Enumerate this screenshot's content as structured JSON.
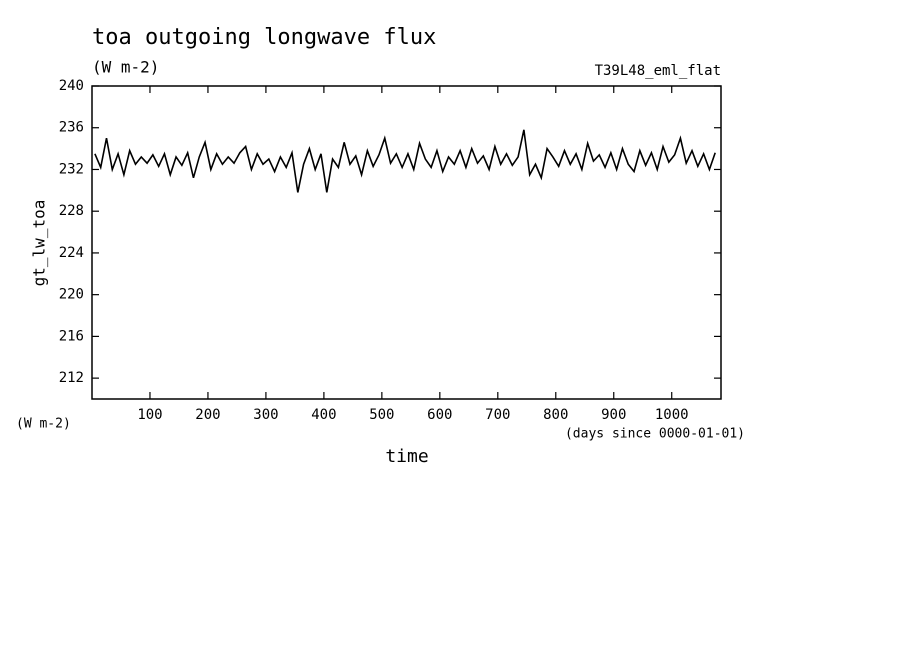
{
  "chart_data": {
    "type": "line",
    "title": "toa outgoing longwave flux",
    "subtitle": "(W m-2)",
    "annotation": "T39L48_eml_flat",
    "ylabel": "gt_lw_toa",
    "yunit": "(W m-2)",
    "xunit": "(days since 0000-01-01)",
    "xlabel": "time",
    "xlim": [
      0,
      1085
    ],
    "ylim": [
      210,
      240
    ],
    "xticks": [
      100,
      200,
      300,
      400,
      500,
      600,
      700,
      800,
      900,
      1000
    ],
    "yticks": [
      212,
      216,
      220,
      224,
      228,
      232,
      236,
      240
    ],
    "x": [
      5,
      15,
      25,
      35,
      45,
      55,
      65,
      75,
      85,
      95,
      105,
      115,
      125,
      135,
      145,
      155,
      165,
      175,
      185,
      195,
      205,
      215,
      225,
      235,
      245,
      255,
      265,
      275,
      285,
      295,
      305,
      315,
      325,
      335,
      345,
      355,
      365,
      375,
      385,
      395,
      405,
      415,
      425,
      435,
      445,
      455,
      465,
      475,
      485,
      495,
      505,
      515,
      525,
      535,
      545,
      555,
      565,
      575,
      585,
      595,
      605,
      615,
      625,
      635,
      645,
      655,
      665,
      675,
      685,
      695,
      705,
      715,
      725,
      735,
      745,
      755,
      765,
      775,
      785,
      795,
      805,
      815,
      825,
      835,
      845,
      855,
      865,
      875,
      885,
      895,
      905,
      915,
      925,
      935,
      945,
      955,
      965,
      975,
      985,
      995,
      1005,
      1015,
      1025,
      1035,
      1045,
      1055,
      1065,
      1075
    ],
    "series": [
      {
        "name": "gt_lw_toa",
        "color": "#000000",
        "values": [
          233.5,
          232.2,
          235,
          232,
          233.5,
          231.5,
          233.8,
          232.5,
          233.2,
          232.6,
          233.4,
          232.3,
          233.5,
          231.5,
          233.2,
          232.4,
          233.6,
          231.2,
          233.2,
          234.6,
          232,
          233.5,
          232.5,
          233.2,
          232.6,
          233.6,
          234.2,
          232,
          233.5,
          232.5,
          233,
          231.8,
          233.2,
          232.2,
          233.6,
          229.8,
          232.5,
          234,
          232,
          233.5,
          229.8,
          233,
          232.2,
          234.6,
          232.5,
          233.3,
          231.5,
          233.8,
          232.3,
          233.4,
          235,
          232.6,
          233.5,
          232.2,
          233.5,
          232,
          234.5,
          233,
          232.2,
          233.8,
          231.8,
          233.2,
          232.5,
          233.8,
          232.2,
          234,
          232.6,
          233.3,
          232,
          234.2,
          232.5,
          233.5,
          232.4,
          233.2,
          235.8,
          231.5,
          232.5,
          231.2,
          234,
          233.2,
          232.3,
          233.8,
          232.5,
          233.5,
          232,
          234.5,
          232.8,
          233.4,
          232.2,
          233.6,
          232,
          234,
          232.5,
          231.8,
          233.8,
          232.4,
          233.6,
          232,
          234.2,
          232.7,
          233.4,
          235,
          232.6,
          233.8,
          232.3,
          233.5,
          232,
          233.6
        ]
      }
    ]
  }
}
